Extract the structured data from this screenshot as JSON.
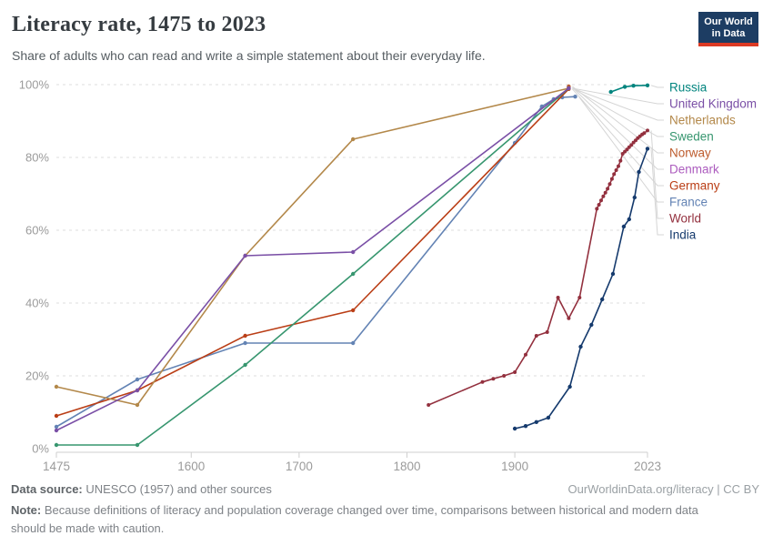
{
  "header": {
    "title": "Literacy rate, 1475 to 2023",
    "subtitle": "Share of adults who can read and write a simple statement about their everyday life."
  },
  "logo": {
    "line1": "Our World",
    "line2": "in Data",
    "bg_color": "#1D3D63",
    "accent_color": "#DC3A24"
  },
  "footer": {
    "source_label": "Data source:",
    "source_text": " UNESCO (1957) and other sources",
    "attribution": "OurWorldinData.org/literacy | CC BY",
    "note_label": "Note:",
    "note_text": " Because definitions of literacy and population coverage changed over time, comparisons between historical and modern data should be made with caution."
  },
  "chart_data": {
    "type": "line",
    "title": "Literacy rate, 1475 to 2023",
    "xlabel": "",
    "ylabel": "",
    "xlim": [
      1475,
      2023
    ],
    "ylim": [
      0,
      100
    ],
    "x_ticks": [
      1475,
      1600,
      1700,
      1800,
      1900,
      2023
    ],
    "y_ticks": [
      0,
      20,
      40,
      60,
      80,
      100
    ],
    "y_tick_suffix": "%",
    "grid": "horizontal-dashed",
    "legend_position": "right",
    "series": [
      {
        "name": "Russia",
        "color": "#00847E",
        "points": [
          [
            1989,
            98
          ],
          [
            2002,
            99.4
          ],
          [
            2010,
            99.7
          ],
          [
            2023,
            99.8
          ]
        ]
      },
      {
        "name": "United Kingdom",
        "color": "#7A4FA6",
        "points": [
          [
            1475,
            5
          ],
          [
            1550,
            16
          ],
          [
            1650,
            53
          ],
          [
            1750,
            54
          ],
          [
            1950,
            99
          ]
        ]
      },
      {
        "name": "Netherlands",
        "color": "#B3884A",
        "points": [
          [
            1475,
            17
          ],
          [
            1550,
            12
          ],
          [
            1650,
            53
          ],
          [
            1750,
            85
          ],
          [
            1950,
            99
          ]
        ]
      },
      {
        "name": "Sweden",
        "color": "#37966F",
        "points": [
          [
            1475,
            1
          ],
          [
            1550,
            1
          ],
          [
            1650,
            23
          ],
          [
            1750,
            48
          ],
          [
            1950,
            99
          ]
        ]
      },
      {
        "name": "Norway",
        "color": "#BD5B2C",
        "points": [
          [
            1950,
            99.5
          ]
        ]
      },
      {
        "name": "Denmark",
        "color": "#AC5CBE",
        "points": [
          [
            1950,
            99.2
          ]
        ]
      },
      {
        "name": "Germany",
        "color": "#BA3E16",
        "points": [
          [
            1475,
            9
          ],
          [
            1550,
            16
          ],
          [
            1650,
            31
          ],
          [
            1750,
            38
          ],
          [
            1950,
            98.8
          ]
        ]
      },
      {
        "name": "France",
        "color": "#6383B4",
        "points": [
          [
            1475,
            6
          ],
          [
            1550,
            19
          ],
          [
            1650,
            29
          ],
          [
            1750,
            29
          ],
          [
            1900,
            84
          ],
          [
            1925,
            94
          ],
          [
            1936,
            96
          ],
          [
            1944,
            96.5
          ],
          [
            1956,
            96.7
          ]
        ]
      },
      {
        "name": "World",
        "color": "#93303E",
        "points": [
          [
            1820,
            12
          ],
          [
            1870,
            18.3
          ],
          [
            1880,
            19.2
          ],
          [
            1890,
            20
          ],
          [
            1900,
            21
          ],
          [
            1910,
            25.8
          ],
          [
            1920,
            31
          ],
          [
            1930,
            32
          ],
          [
            1940,
            41.5
          ],
          [
            1950,
            35.8
          ],
          [
            1960,
            41.5
          ],
          [
            1976,
            65.9
          ],
          [
            1978,
            67
          ],
          [
            1980,
            68.2
          ],
          [
            1982,
            69.3
          ],
          [
            1984,
            70.3
          ],
          [
            1986,
            71.4
          ],
          [
            1988,
            72.7
          ],
          [
            1990,
            74.1
          ],
          [
            1992,
            75.4
          ],
          [
            1994,
            76.5
          ],
          [
            1996,
            77.6
          ],
          [
            1998,
            79.1
          ],
          [
            2000,
            81
          ],
          [
            2002,
            81.6
          ],
          [
            2004,
            82.2
          ],
          [
            2006,
            82.8
          ],
          [
            2008,
            83.4
          ],
          [
            2010,
            84.1
          ],
          [
            2012,
            84.7
          ],
          [
            2014,
            85.3
          ],
          [
            2016,
            85.8
          ],
          [
            2018,
            86.3
          ],
          [
            2020,
            86.7
          ],
          [
            2023,
            87.4
          ]
        ]
      },
      {
        "name": "India",
        "color": "#153A6D",
        "points": [
          [
            1900,
            5.5
          ],
          [
            1910,
            6.2
          ],
          [
            1920,
            7.3
          ],
          [
            1931,
            8.5
          ],
          [
            1951,
            17
          ],
          [
            1961,
            28
          ],
          [
            1971,
            34
          ],
          [
            1981,
            41
          ],
          [
            1991,
            48
          ],
          [
            2001,
            61
          ],
          [
            2006,
            63
          ],
          [
            2011,
            69
          ],
          [
            2015,
            76
          ],
          [
            2023,
            82.4
          ]
        ]
      }
    ]
  }
}
